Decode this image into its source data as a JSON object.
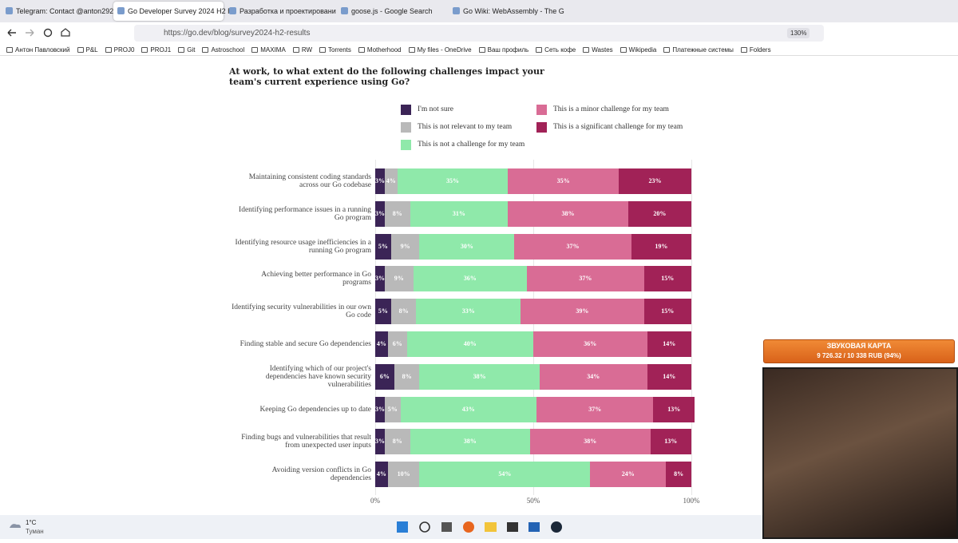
{
  "browser": {
    "tabs": [
      "Telegram: Contact @anton292",
      "Go Developer Survey 2024 H2 R",
      "Разработка и проектировани",
      "goose.js - Google Search",
      "Go Wiki: WebAssembly - The G"
    ],
    "url": "https://go.dev/blog/survey2024-h2-results",
    "zoom": "130%",
    "bookmarks": [
      "Антон Павловский",
      "P&L",
      "PROJ0",
      "PROJ1",
      "Git",
      "Astroschool",
      "MAXIMA",
      "RW",
      "Torrents",
      "Motherhood",
      "My files - OneDrive",
      "Ваш профиль",
      "Сеть кофе",
      "Wastes",
      "Wikipedia",
      "Платежные системы",
      "Folders"
    ]
  },
  "chart_data": {
    "type": "bar",
    "orientation": "horizontal",
    "stacked": true,
    "title": "At work, to what extent do the following challenges impact your team's current experience using Go?",
    "categories": [
      "Maintaining consistent coding standards across our Go codebase",
      "Identifying performance issues in a running Go program",
      "Identifying resource usage inefficiencies in a running Go program",
      "Achieving better performance in Go programs",
      "Identifying security vulnerabilities in our own Go code",
      "Finding stable and secure Go dependencies",
      "Identifying which of our project's dependencies have known security vulnerabilities",
      "Keeping Go dependencies up to date",
      "Finding bugs and vulnerabilities that result from unexpected user inputs",
      "Avoiding version conflicts in Go dependencies"
    ],
    "series": [
      {
        "name": "I'm not sure",
        "color": "#3b2456",
        "values": [
          3,
          3,
          5,
          3,
          5,
          4,
          6,
          3,
          3,
          4
        ],
        "value_labels": [
          "3%",
          "3%",
          "5%",
          "3%",
          "5%",
          "4%",
          "6%",
          "3%",
          "3%",
          "4%"
        ]
      },
      {
        "name": "This is not relevant to my team",
        "color": "#b9b9b9",
        "values": [
          4,
          8,
          9,
          9,
          8,
          6,
          8,
          5,
          8,
          10
        ],
        "value_labels": [
          "4%",
          "8%",
          "9%",
          "9%",
          "8%",
          "6%",
          "8%",
          "5%",
          "8%",
          "10%"
        ]
      },
      {
        "name": "This is not a challenge for my team",
        "color": "#8fe9aa",
        "values": [
          35,
          31,
          30,
          36,
          33,
          40,
          38,
          43,
          38,
          54
        ],
        "value_labels": [
          "35%",
          "31%",
          "30%",
          "36%",
          "33%",
          "40%",
          "38%",
          "43%",
          "38%",
          "54%"
        ]
      },
      {
        "name": "This is a minor challenge for my team",
        "color": "#d96c95",
        "values": [
          35,
          38,
          37,
          37,
          39,
          36,
          34,
          37,
          38,
          24
        ],
        "value_labels": [
          "35%",
          "38%",
          "37%",
          "37%",
          "39%",
          "36%",
          "34%",
          "37%",
          "38%",
          "24%"
        ]
      },
      {
        "name": "This is a significant challenge for my team",
        "color": "#a12257",
        "values": [
          23,
          20,
          19,
          15,
          15,
          14,
          14,
          13,
          13,
          8
        ],
        "value_labels": [
          "23%",
          "20%",
          "19%",
          "15%",
          "15%",
          "14%",
          "14%",
          "13%",
          "13%",
          "8%"
        ]
      }
    ],
    "xlim": [
      0,
      100
    ],
    "xticks": [
      {
        "value": 0,
        "label": "0%"
      },
      {
        "value": 50,
        "label": "50%"
      },
      {
        "value": 100,
        "label": "100%"
      }
    ],
    "grid": true
  },
  "overlay": {
    "title": "ЗВУКОВАЯ КАРТА",
    "text": "9 726.32 / 10 338 RUB (94%)"
  },
  "taskbar": {
    "temperature": "1°C",
    "weather": "Туман"
  }
}
